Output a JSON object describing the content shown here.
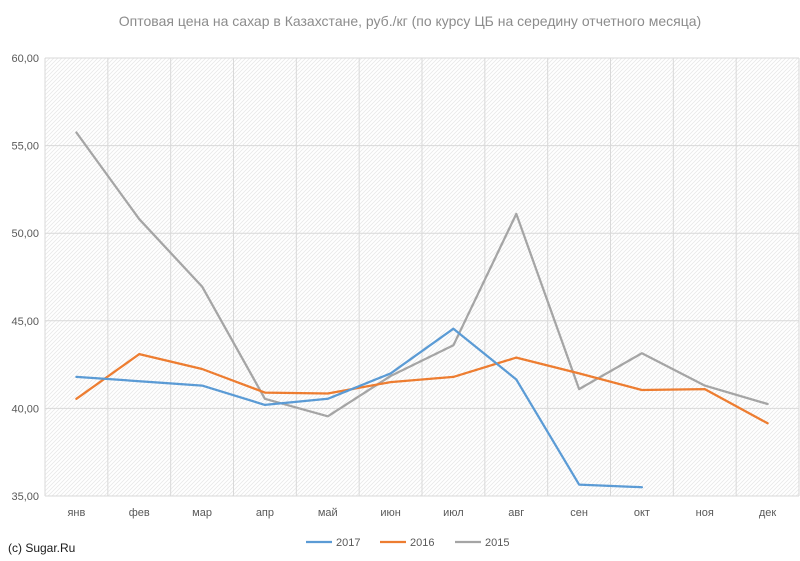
{
  "chart_data": {
    "type": "line",
    "title": "Оптовая цена на сахар в Казахстане, руб./кг (по курсу ЦБ на середину отчетного месяца)",
    "categories": [
      "янв",
      "фев",
      "мар",
      "апр",
      "май",
      "июн",
      "июл",
      "авг",
      "сен",
      "окт",
      "ноя",
      "дек"
    ],
    "ylim": [
      35,
      60
    ],
    "yticks": [
      "35,00",
      "40,00",
      "45,00",
      "50,00",
      "55,00",
      "60,00"
    ],
    "grid": true,
    "legend_position": "bottom",
    "series": [
      {
        "name": "2017",
        "color": "#5b9bd5",
        "values": [
          41.8,
          41.55,
          41.3,
          40.2,
          40.55,
          42.0,
          44.55,
          41.65,
          35.65,
          35.5,
          null,
          null
        ]
      },
      {
        "name": "2016",
        "color": "#ed7d31",
        "values": [
          40.55,
          43.1,
          42.25,
          40.9,
          40.85,
          41.5,
          41.8,
          42.9,
          42.0,
          41.05,
          41.1,
          39.15
        ]
      },
      {
        "name": "2015",
        "color": "#a5a5a5",
        "values": [
          55.75,
          50.8,
          46.95,
          40.55,
          39.55,
          41.85,
          43.6,
          51.1,
          41.1,
          43.15,
          41.3,
          40.25
        ]
      }
    ]
  },
  "credit": "(c) Sugar.Ru"
}
